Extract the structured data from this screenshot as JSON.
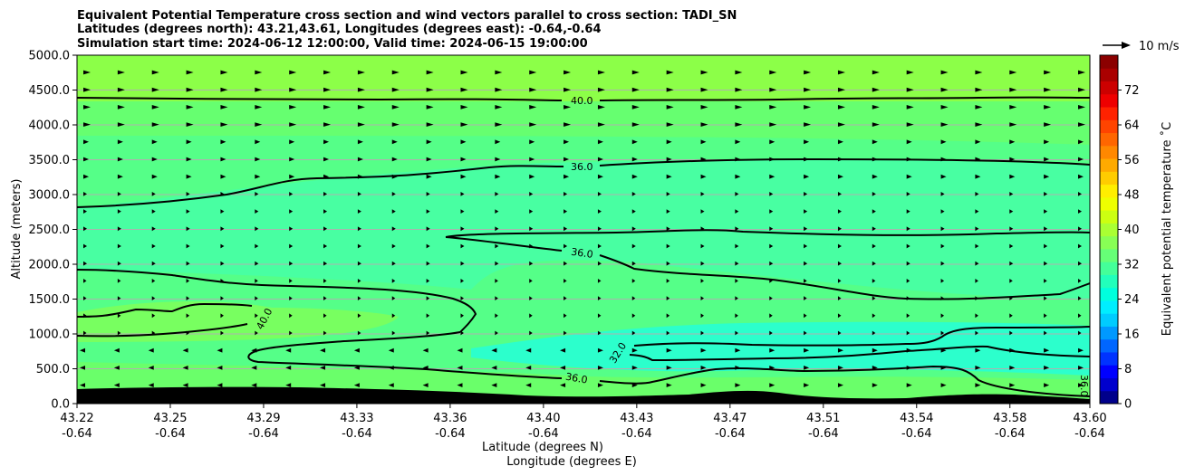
{
  "chart_data": {
    "type": "contour",
    "title_lines": [
      "Equivalent Potential Temperature cross section and wind vectors parallel to cross section: TADI_SN",
      "Latitudes (degrees north): 43.21,43.61, Longitudes (degrees east): -0.64,-0.64",
      "Simulation start time: 2024-06-12 12:00:00, Valid time: 2024-06-15 19:00:00"
    ],
    "xlabel": "Latitude (degrees N)",
    "xlabel2": "Longitude (degrees E)",
    "ylabel": "Altitude (meters)",
    "x_ticks": [
      {
        "lat": "43.22",
        "lon": "-0.64"
      },
      {
        "lat": "43.25",
        "lon": "-0.64"
      },
      {
        "lat": "43.29",
        "lon": "-0.64"
      },
      {
        "lat": "43.33",
        "lon": "-0.64"
      },
      {
        "lat": "43.36",
        "lon": "-0.64"
      },
      {
        "lat": "43.40",
        "lon": "-0.64"
      },
      {
        "lat": "43.43",
        "lon": "-0.64"
      },
      {
        "lat": "43.47",
        "lon": "-0.64"
      },
      {
        "lat": "43.51",
        "lon": "-0.64"
      },
      {
        "lat": "43.54",
        "lon": "-0.64"
      },
      {
        "lat": "43.58",
        "lon": "-0.64"
      },
      {
        "lat": "43.60",
        "lon": "-0.64"
      }
    ],
    "x_tick_values": [
      43.22,
      43.255,
      43.29,
      43.325,
      43.36,
      43.395,
      43.43,
      43.465,
      43.5,
      43.535,
      43.57,
      43.6
    ],
    "xlim": [
      43.22,
      43.6
    ],
    "y_ticks": [
      "0.0",
      "500.0",
      "1000.0",
      "1500.0",
      "2000.0",
      "2500.0",
      "3000.0",
      "3500.0",
      "4000.0",
      "4500.0",
      "5000.0"
    ],
    "y_tick_values": [
      0,
      500,
      1000,
      1500,
      2000,
      2500,
      3000,
      3500,
      4000,
      4500,
      5000
    ],
    "ylim": [
      0,
      5000
    ],
    "grid": "horizontal",
    "colorbar": {
      "label": "Equivalent potential temperature $^\\circ$C",
      "label_text": "Equivalent potential temperature ˚C",
      "range": [
        0,
        80
      ],
      "ticks": [
        "0",
        "8",
        "16",
        "24",
        "32",
        "40",
        "48",
        "56",
        "64",
        "72"
      ],
      "tick_values": [
        0,
        8,
        16,
        24,
        32,
        40,
        48,
        56,
        64,
        72
      ],
      "colors": [
        "#00008b",
        "#0000cd",
        "#0000ff",
        "#0033ff",
        "#0066ff",
        "#0099ff",
        "#00ccff",
        "#00eeff",
        "#00ffdd",
        "#22ffbb",
        "#44ff99",
        "#66ff77",
        "#88ff55",
        "#aaff33",
        "#ccff11",
        "#eeff00",
        "#ffee00",
        "#ffcc00",
        "#ffaa00",
        "#ff8800",
        "#ff6600",
        "#ff4400",
        "#ff2200",
        "#ee0000",
        "#cc0000",
        "#aa0000",
        "#8b0000"
      ]
    },
    "quiver_key": "10 m/s",
    "contour_labels": [
      "40.0",
      "36.0",
      "36.0",
      "40.0",
      "32.0",
      "36.0",
      "36.0"
    ],
    "field_colors": {
      "upper": "#88ff44",
      "mid": "#55ff88",
      "core": "#44ffa0",
      "low_cool": "#30ffc8",
      "warm_pocket": "#7fff55",
      "terrain": "#000000"
    }
  }
}
